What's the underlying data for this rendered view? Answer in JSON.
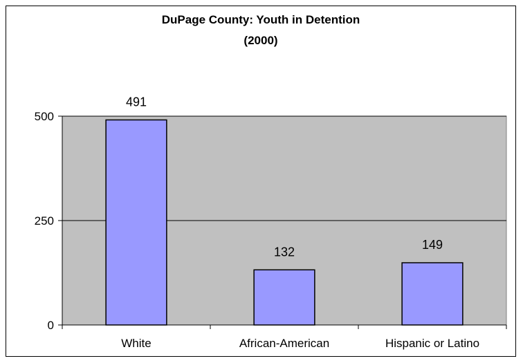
{
  "chart_data": {
    "type": "bar",
    "title": "DuPage County:  Youth in Detention",
    "subtitle": "(2000)",
    "xlabel": "",
    "ylabel": "",
    "categories": [
      "White",
      "African-American",
      "Hispanic or Latino"
    ],
    "values": [
      491,
      132,
      149
    ],
    "data_labels": [
      "491",
      "132",
      "149"
    ],
    "ylim": [
      0,
      500
    ],
    "yticks": [
      0,
      250,
      500
    ],
    "ytick_labels": [
      "0",
      "250",
      "500"
    ],
    "grid": true,
    "legend": "none",
    "colors": {
      "bar_fill": "#9999ff",
      "bar_stroke": "#000000",
      "plot_background": "#c0c0c0",
      "gridline": "#000000",
      "axis": "#000000"
    }
  }
}
